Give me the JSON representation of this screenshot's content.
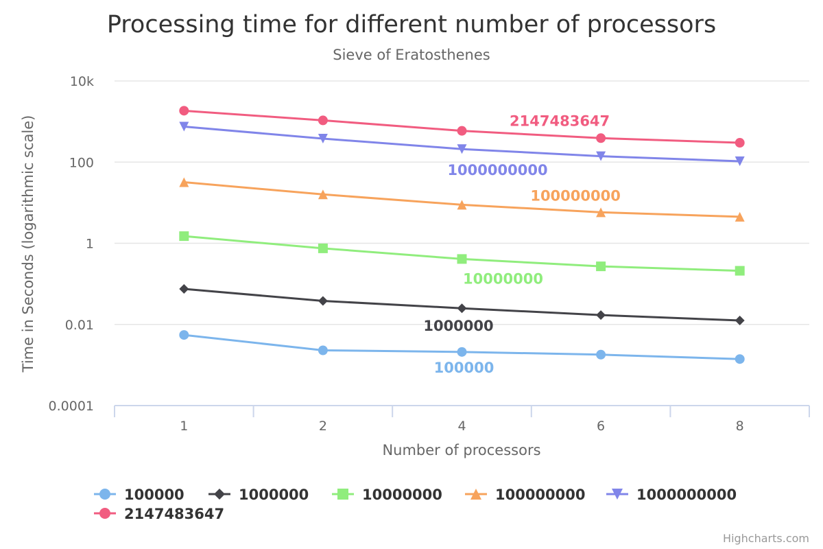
{
  "chart_data": {
    "type": "line",
    "title": "Processing time for different number of processors",
    "subtitle": "Sieve of Eratosthenes",
    "xlabel": "Number of processors",
    "ylabel": "Time in Seconds (logarithmic scale)",
    "y_scale": "log",
    "ylim": [
      0.0001,
      10000
    ],
    "y_ticks": [
      0.0001,
      0.01,
      1,
      100,
      10000
    ],
    "y_tick_labels": [
      "0.0001",
      "0.01",
      "1",
      "100",
      "10k"
    ],
    "categories": [
      "1",
      "2",
      "4",
      "6",
      "8"
    ],
    "grid": true,
    "legend_position": "bottom-left",
    "series": [
      {
        "name": "100000",
        "color": "#7cb5ec",
        "marker": "circle",
        "values": [
          0.0055,
          0.0023,
          0.0021,
          0.0018,
          0.0014
        ]
      },
      {
        "name": "1000000",
        "color": "#434348",
        "marker": "diamond",
        "values": [
          0.075,
          0.038,
          0.025,
          0.017,
          0.0125
        ]
      },
      {
        "name": "10000000",
        "color": "#90ed7d",
        "marker": "square",
        "values": [
          1.5,
          0.75,
          0.41,
          0.27,
          0.21
        ]
      },
      {
        "name": "100000000",
        "color": "#f7a35c",
        "marker": "triangle",
        "values": [
          32,
          16,
          8.9,
          5.8,
          4.5
        ]
      },
      {
        "name": "1000000000",
        "color": "#8085e9",
        "marker": "triangle-down",
        "values": [
          750,
          380,
          210,
          140,
          105
        ]
      },
      {
        "name": "2147483647",
        "color": "#f15c80",
        "marker": "circle",
        "values": [
          1850,
          1070,
          590,
          390,
          300
        ]
      }
    ]
  },
  "credits": "Highcharts.com"
}
